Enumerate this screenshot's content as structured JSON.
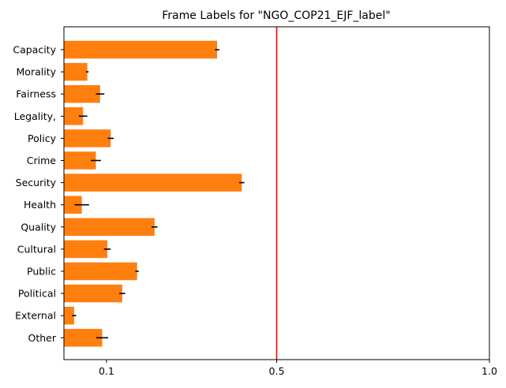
{
  "chart_data": {
    "type": "bar",
    "orientation": "horizontal",
    "title": "Frame Labels for \"NGO_COP21_EJF_label\"",
    "xlabel": "",
    "ylabel": "",
    "xlim": [
      0.0,
      1.0
    ],
    "x_ticks": [
      {
        "value": 0.1,
        "label": "0.1"
      },
      {
        "value": 0.5,
        "label": "0.5"
      },
      {
        "value": 1.0,
        "label": "1.0"
      }
    ],
    "reference_line": {
      "value": 0.5,
      "color": "#ff0000"
    },
    "bar_color": "#ff7f0e",
    "error_color": "#000000",
    "grid": false,
    "categories": [
      "Capacity",
      "Morality",
      "Fairness",
      "Legality,",
      "Policy",
      "Crime",
      "Security",
      "Health",
      "Quality",
      "Cultural",
      "Public",
      "Political",
      "External",
      "Other"
    ],
    "values": [
      0.36,
      0.055,
      0.085,
      0.045,
      0.11,
      0.075,
      0.418,
      0.042,
      0.213,
      0.102,
      0.172,
      0.137,
      0.024,
      0.09
    ],
    "errors": [
      0.005,
      0.003,
      0.01,
      0.01,
      0.007,
      0.012,
      0.006,
      0.017,
      0.007,
      0.008,
      0.004,
      0.007,
      0.005,
      0.014
    ]
  }
}
